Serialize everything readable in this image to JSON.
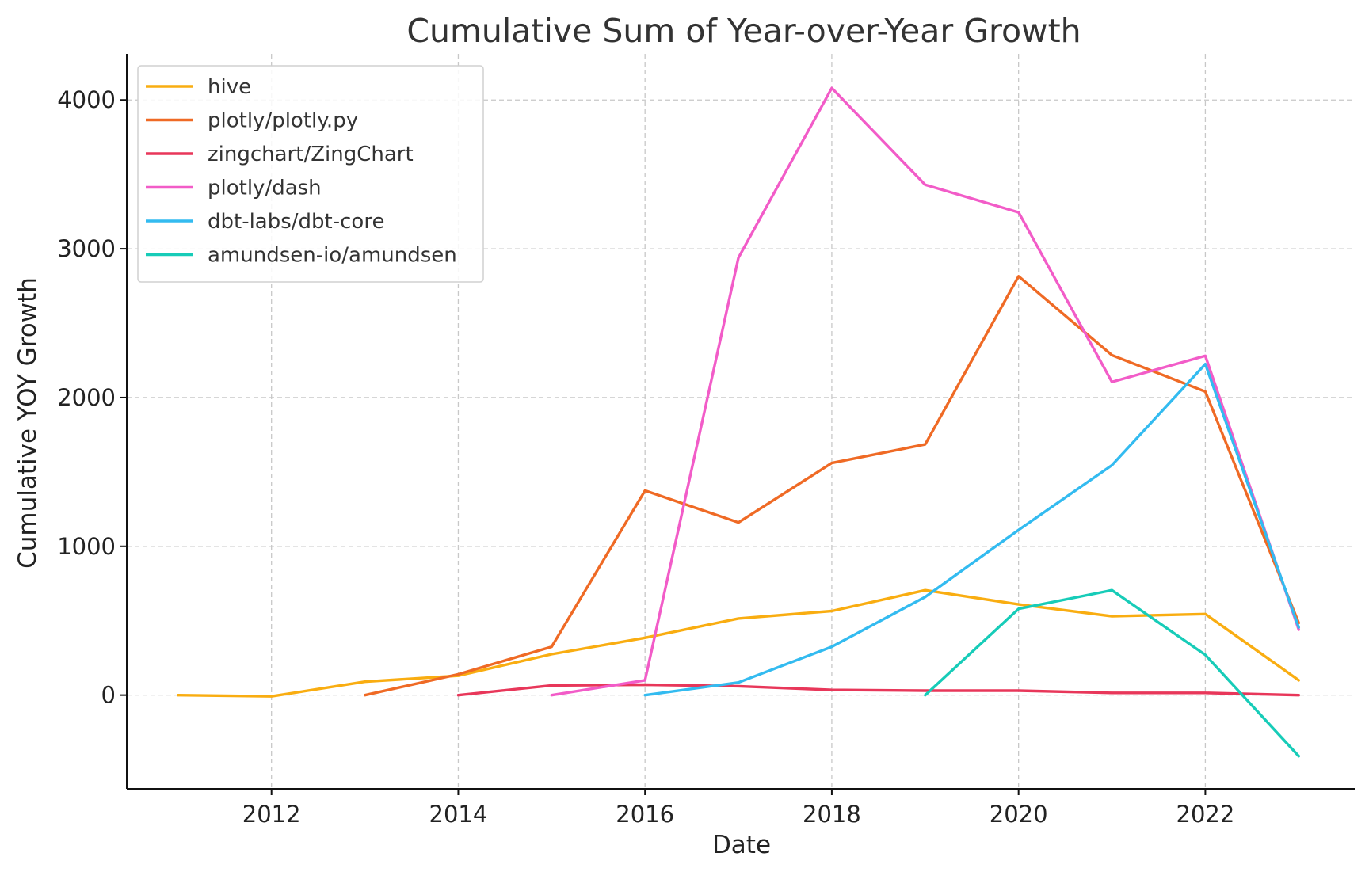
{
  "chart_data": {
    "type": "line",
    "title": "Cumulative Sum of Year-over-Year Growth",
    "xlabel": "Date",
    "ylabel": "Cumulative YOY Growth",
    "xlim": [
      2010.45,
      2023.6
    ],
    "ylim": [
      -630,
      4310
    ],
    "x_ticks": [
      2012,
      2014,
      2016,
      2018,
      2020,
      2022
    ],
    "y_ticks": [
      0,
      1000,
      2000,
      3000,
      4000
    ],
    "grid": true,
    "legend_position": "top-left",
    "series": [
      {
        "name": "hive",
        "color": "#f9ad11",
        "x": [
          2011,
          2012,
          2013,
          2014,
          2015,
          2016,
          2017,
          2018,
          2019,
          2020,
          2021,
          2022,
          2023
        ],
        "y": [
          0,
          -8,
          90,
          130,
          275,
          385,
          515,
          565,
          705,
          610,
          530,
          545,
          100
        ]
      },
      {
        "name": "plotly/plotly.py",
        "color": "#ef6a25",
        "x": [
          2013,
          2014,
          2015,
          2016,
          2017,
          2018,
          2019,
          2020,
          2021,
          2022,
          2023
        ],
        "y": [
          0,
          140,
          325,
          1375,
          1160,
          1560,
          1685,
          2815,
          2285,
          2040,
          485
        ]
      },
      {
        "name": "zingchart/ZingChart",
        "color": "#e8375a",
        "x": [
          2014,
          2015,
          2016,
          2017,
          2018,
          2019,
          2020,
          2021,
          2022,
          2023
        ],
        "y": [
          0,
          65,
          70,
          60,
          35,
          30,
          30,
          15,
          15,
          0
        ]
      },
      {
        "name": "plotly/dash",
        "color": "#f25cc8",
        "x": [
          2015,
          2016,
          2017,
          2018,
          2019,
          2020,
          2021,
          2022,
          2023
        ],
        "y": [
          0,
          100,
          2940,
          4080,
          3430,
          3245,
          2105,
          2280,
          440
        ]
      },
      {
        "name": "dbt-labs/dbt-core",
        "color": "#33bbf0",
        "x": [
          2016,
          2017,
          2018,
          2019,
          2020,
          2021,
          2022,
          2023
        ],
        "y": [
          0,
          85,
          325,
          660,
          1110,
          1545,
          2225,
          455
        ]
      },
      {
        "name": "amundsen-io/amundsen",
        "color": "#17ccb8",
        "x": [
          2019,
          2020,
          2021,
          2022,
          2023
        ],
        "y": [
          0,
          580,
          705,
          270,
          -410
        ]
      }
    ]
  }
}
